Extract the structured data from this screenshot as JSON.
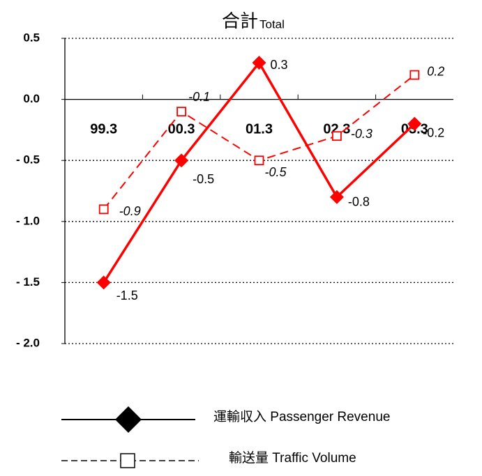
{
  "chart_data": {
    "type": "line",
    "title": "合計",
    "subtitle": "Total",
    "categories": [
      "99.3",
      "00.3",
      "01.3",
      "02.3",
      "03.3"
    ],
    "series": [
      {
        "name": "運輸収入 Passenger Revenue",
        "color": "#ff0000",
        "values": [
          -1.5,
          -0.5,
          0.3,
          -0.8,
          -0.2
        ]
      },
      {
        "name": "輸送量 Traffic Volume",
        "color": "#ff0000",
        "values": [
          -0.9,
          -0.1,
          -0.5,
          -0.3,
          0.2
        ]
      }
    ],
    "ylim": [
      -2.0,
      0.5
    ],
    "yticks": [
      0.5,
      {
        "value": 0.0,
        "label": "0.0"
      },
      {
        "value": -0.5,
        "label": "- 0.5"
      },
      {
        "value": -1.0,
        "label": "- 1.0"
      },
      {
        "value": -1.5,
        "label": "- 1.5"
      },
      {
        "value": -2.0,
        "label": "- 2.0"
      }
    ],
    "grid": true
  }
}
